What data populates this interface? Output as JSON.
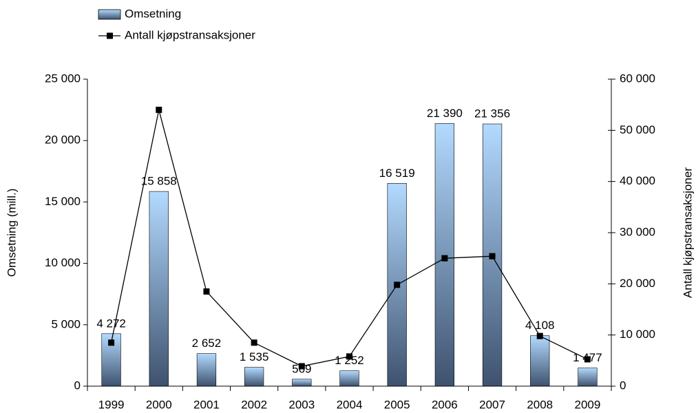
{
  "chart_data": {
    "type": "bar",
    "categories": [
      "1999",
      "2000",
      "2001",
      "2002",
      "2003",
      "2004",
      "2005",
      "2006",
      "2007",
      "2008",
      "2009"
    ],
    "series": [
      {
        "name": "Omsetning",
        "type": "bar",
        "color": "#3e526e",
        "values": [
          4272,
          15858,
          2652,
          1535,
          569,
          1252,
          16519,
          21390,
          21356,
          4108,
          1477
        ],
        "value_labels": [
          "4 272",
          "15 858",
          "2 652",
          "1 535",
          "569",
          "1 252",
          "16 519",
          "21 390",
          "21 356",
          "4 108",
          "1 477"
        ]
      },
      {
        "name": "Antall kjøpstransaksjoner",
        "type": "line",
        "axis": "y2",
        "color": "#000000",
        "values": [
          8500,
          54000,
          18500,
          8500,
          3900,
          5800,
          19800,
          25000,
          25400,
          9800,
          5250
        ]
      }
    ],
    "ylabel": "Omsetning (mill.)",
    "y2label": "Antall kjøpstransaksjoner",
    "ylim": [
      0,
      25000
    ],
    "yticks": [
      0,
      {
        "value": 5000,
        "label": "5 000"
      },
      {
        "value": 10000,
        "label": "10 000"
      },
      {
        "value": 15000,
        "label": "15 000"
      },
      {
        "value": 20000,
        "label": "20 000"
      },
      {
        "value": 25000,
        "label": "25 000"
      }
    ],
    "y2lim": [
      0,
      60000
    ],
    "y2ticks": [
      0,
      {
        "value": 10000,
        "label": "10 000"
      },
      {
        "value": 20000,
        "label": "20 000"
      },
      {
        "value": 30000,
        "label": "30 000"
      },
      {
        "value": 40000,
        "label": "40 000"
      },
      {
        "value": 50000,
        "label": "50 000"
      },
      {
        "value": 60000,
        "label": "60 000"
      }
    ],
    "legend": "top-left"
  }
}
